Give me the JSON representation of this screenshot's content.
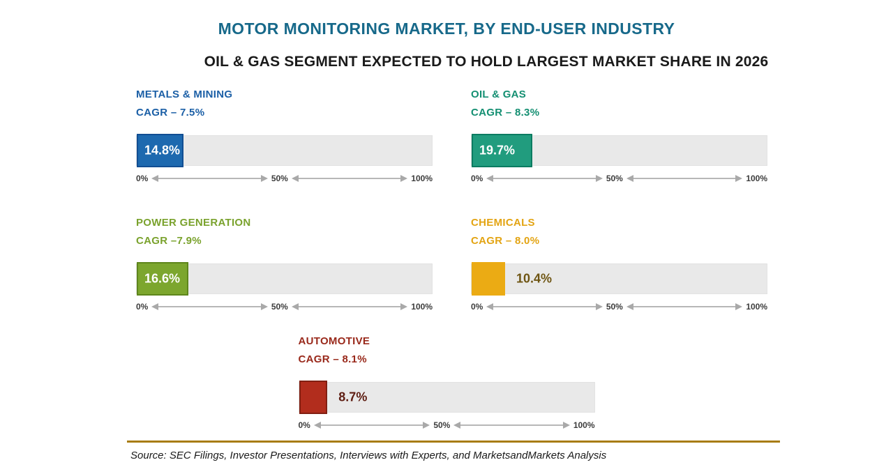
{
  "header": {
    "title": "MOTOR MONITORING MARKET, BY END-USER INDUSTRY",
    "subtitle": "OIL & GAS SEGMENT EXPECTED TO HOLD LARGEST MARKET SHARE IN 2026"
  },
  "theme": {
    "title_color": "#17698A",
    "subtitle_color": "#1A1A1A",
    "track_color": "#E9E9E9",
    "axis_text_color": "#3C3C3C",
    "arrow_color": "#B7B7B7",
    "divider_color": "#A87C10",
    "source_color": "#1A1A1A"
  },
  "chart_data": {
    "type": "bar",
    "title": "MOTOR MONITORING MARKET, BY END-USER INDUSTRY",
    "subtitle": "OIL & GAS SEGMENT EXPECTED TO HOLD LARGEST MARKET SHARE IN 2026",
    "unit": "% market share in 2026",
    "xlim": [
      0,
      100
    ],
    "axis_ticks": [
      "0%",
      "50%",
      "100%"
    ],
    "legend_position": "none",
    "grid": false,
    "series": [
      {
        "name": "METALS & MINING",
        "cagr_label": "CAGR – 7.5%",
        "cagr_pct": 7.5,
        "value": 14.8,
        "value_label": "14.8%",
        "label_position": "inside",
        "color": "#1D69AF",
        "border_color": "#114E93",
        "label_color": "#1B5FA6",
        "value_color": "#FFFFFF"
      },
      {
        "name": "OIL & GAS",
        "cagr_label": "CAGR – 8.3%",
        "cagr_pct": 8.3,
        "value": 19.7,
        "value_label": "19.7%",
        "label_position": "inside",
        "color": "#219C7E",
        "border_color": "#0B7C61",
        "label_color": "#148F72",
        "value_color": "#FFFFFF"
      },
      {
        "name": "POWER GENERATION",
        "cagr_label": "CAGR –7.9%",
        "cagr_pct": 7.9,
        "value": 16.6,
        "value_label": "16.6%",
        "label_position": "inside",
        "color": "#7CA62E",
        "border_color": "#5E861C",
        "label_color": "#7AA22D",
        "value_color": "#FFFFFF"
      },
      {
        "name": "CHEMICALS",
        "cagr_label": "CAGR – 8.0%",
        "cagr_pct": 8.0,
        "value": 10.4,
        "value_label": "10.4%",
        "label_position": "outside",
        "color": "#EBAB14",
        "border_color": "#EBAB14",
        "label_color": "#E3A413",
        "value_color": "#6E5513"
      },
      {
        "name": "AUTOMOTIVE",
        "cagr_label": "CAGR – 8.1%",
        "cagr_pct": 8.1,
        "value": 8.7,
        "value_label": "8.7%",
        "label_position": "outside",
        "color": "#B22D1D",
        "border_color": "#811F12",
        "label_color": "#99291B",
        "value_color": "#5E1D12"
      }
    ]
  },
  "footer": {
    "source": "Source: SEC Filings, Investor Presentations, Interviews with Experts, and MarketsandMarkets Analysis"
  }
}
